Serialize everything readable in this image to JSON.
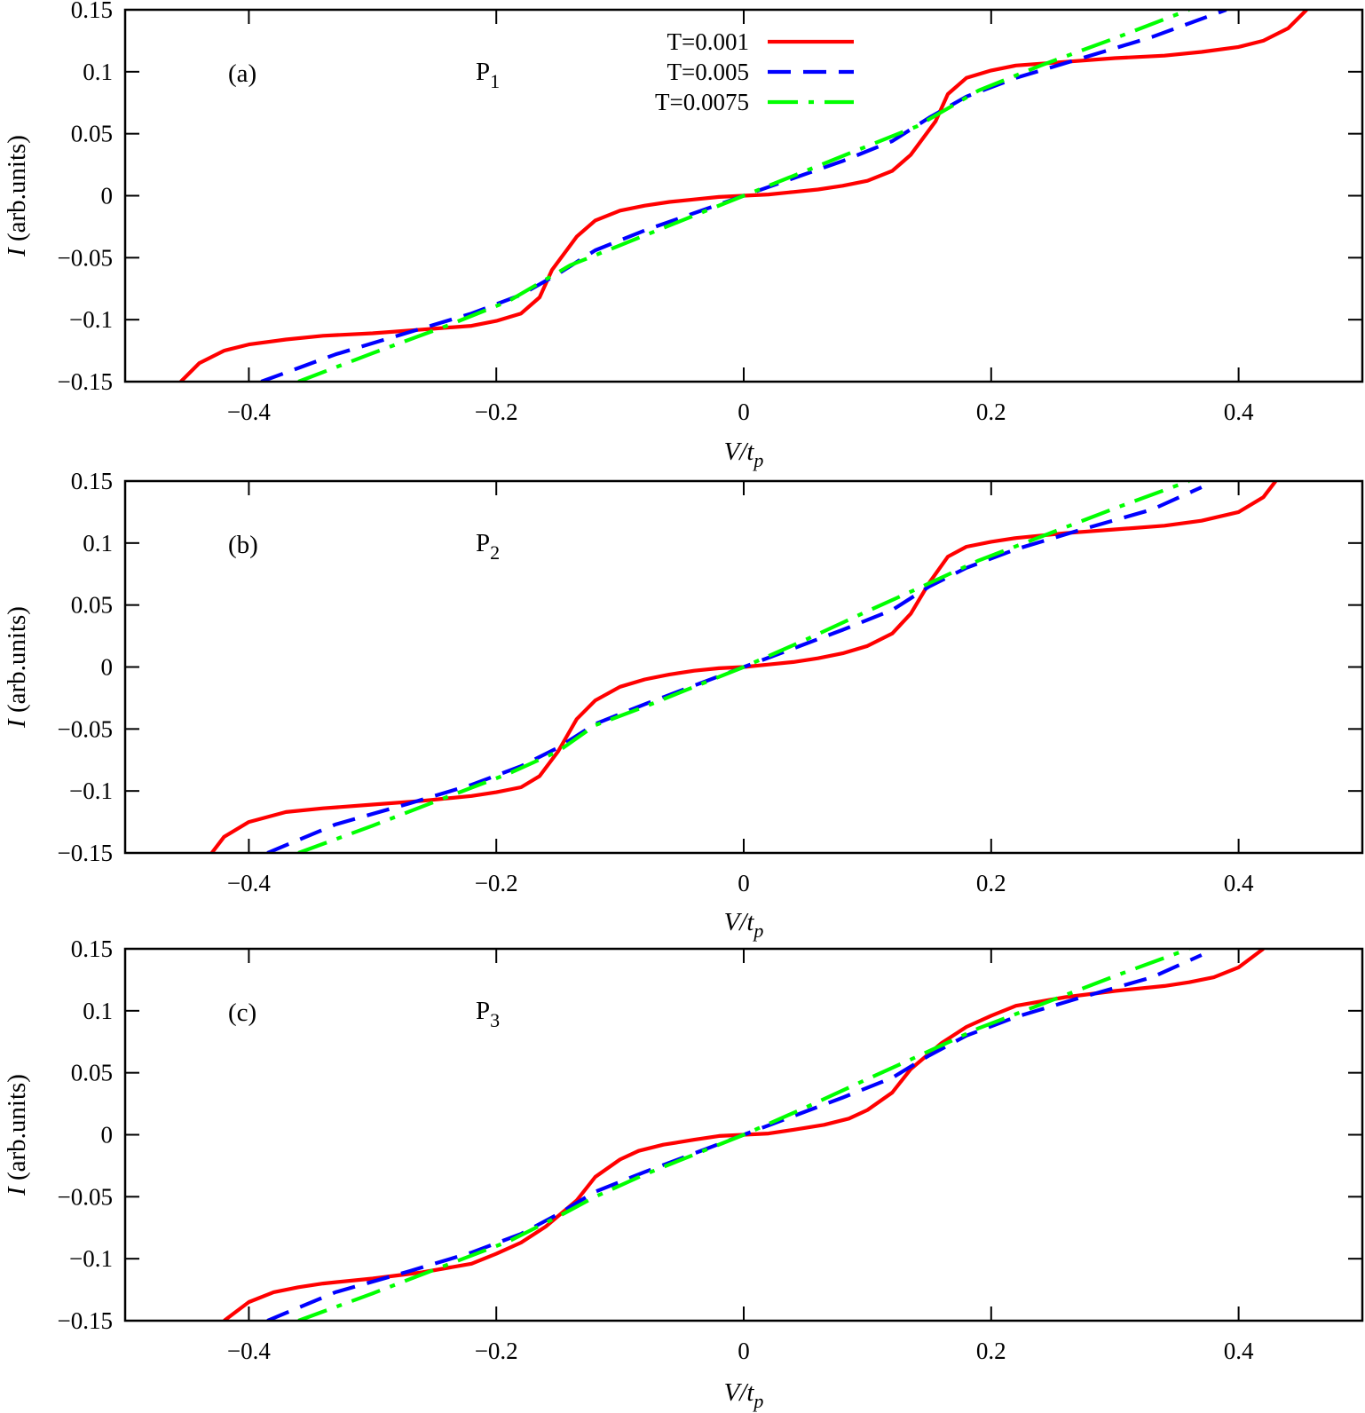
{
  "chart_data": [
    {
      "type": "line",
      "panel_label": "(a)",
      "annotation": {
        "text": "P",
        "subscript": "1"
      },
      "xlabel": {
        "italic": "V/t",
        "subscript": "p"
      },
      "ylabel": {
        "italic": "I",
        "rest": " (arb.units)"
      },
      "xlim": [
        -0.5,
        0.5
      ],
      "ylim": [
        -0.15,
        0.15
      ],
      "xticks": [
        -0.4,
        -0.2,
        0,
        0.2,
        0.4
      ],
      "xtick_labels": [
        "−0.4",
        "−0.2",
        "0",
        "0.2",
        "0.4"
      ],
      "yticks": [
        -0.15,
        -0.1,
        -0.05,
        0,
        0.05,
        0.1,
        0.15
      ],
      "ytick_labels": [
        "−0.15",
        "−0.1",
        "−0.05",
        "0",
        "0.05",
        "0.1",
        "0.15"
      ],
      "legend_position": "top-center",
      "series": [
        {
          "name": "T=0.001",
          "color": "#ff0000",
          "dash": "solid",
          "x": [
            -0.455,
            -0.44,
            -0.42,
            -0.4,
            -0.37,
            -0.34,
            -0.3,
            -0.26,
            -0.22,
            -0.2,
            -0.18,
            -0.165,
            -0.155,
            -0.135,
            -0.12,
            -0.1,
            -0.08,
            -0.06,
            -0.04,
            -0.02,
            0,
            0.02,
            0.04,
            0.06,
            0.08,
            0.1,
            0.12,
            0.135,
            0.155,
            0.165,
            0.18,
            0.2,
            0.22,
            0.26,
            0.3,
            0.34,
            0.37,
            0.4,
            0.42,
            0.44,
            0.455
          ],
          "y": [
            -0.15,
            -0.135,
            -0.125,
            -0.12,
            -0.116,
            -0.113,
            -0.111,
            -0.108,
            -0.105,
            -0.101,
            -0.095,
            -0.082,
            -0.06,
            -0.033,
            -0.02,
            -0.012,
            -0.008,
            -0.005,
            -0.003,
            -0.001,
            0,
            0.001,
            0.003,
            0.005,
            0.008,
            0.012,
            0.02,
            0.033,
            0.06,
            0.082,
            0.095,
            0.101,
            0.105,
            0.108,
            0.111,
            0.113,
            0.116,
            0.12,
            0.125,
            0.135,
            0.15
          ]
        },
        {
          "name": "T=0.005",
          "color": "#0000ff",
          "dash": "dashed",
          "x": [
            -0.39,
            -0.33,
            -0.27,
            -0.22,
            -0.18,
            -0.15,
            -0.12,
            -0.08,
            -0.04,
            0,
            0.04,
            0.08,
            0.12,
            0.15,
            0.18,
            0.22,
            0.27,
            0.33,
            0.39
          ],
          "y": [
            -0.15,
            -0.128,
            -0.11,
            -0.095,
            -0.08,
            -0.063,
            -0.044,
            -0.028,
            -0.014,
            0,
            0.014,
            0.028,
            0.044,
            0.063,
            0.08,
            0.095,
            0.11,
            0.128,
            0.15
          ]
        },
        {
          "name": "T=0.0075",
          "color": "#00ff00",
          "dash": "dash-dot",
          "x": [
            -0.36,
            -0.3,
            -0.24,
            -0.19,
            -0.14,
            -0.1,
            -0.05,
            0,
            0.05,
            0.1,
            0.14,
            0.19,
            0.24,
            0.3,
            0.36
          ],
          "y": [
            -0.15,
            -0.127,
            -0.105,
            -0.085,
            -0.056,
            -0.04,
            -0.02,
            0,
            0.02,
            0.04,
            0.056,
            0.085,
            0.105,
            0.127,
            0.15
          ]
        }
      ]
    },
    {
      "type": "line",
      "panel_label": "(b)",
      "annotation": {
        "text": "P",
        "subscript": "2"
      },
      "xlabel": {
        "italic": "V/t",
        "subscript": "p"
      },
      "ylabel": {
        "italic": "I",
        "rest": " (arb.units)"
      },
      "xlim": [
        -0.5,
        0.5
      ],
      "ylim": [
        -0.15,
        0.15
      ],
      "xticks": [
        -0.4,
        -0.2,
        0,
        0.2,
        0.4
      ],
      "xtick_labels": [
        "−0.4",
        "−0.2",
        "0",
        "0.2",
        "0.4"
      ],
      "yticks": [
        -0.15,
        -0.1,
        -0.05,
        0,
        0.05,
        0.1,
        0.15
      ],
      "ytick_labels": [
        "−0.15",
        "−0.1",
        "−0.05",
        "0",
        "0.05",
        "0.1",
        "0.15"
      ],
      "series": [
        {
          "name": "T=0.001",
          "color": "#ff0000",
          "dash": "solid",
          "x": [
            -0.43,
            -0.42,
            -0.4,
            -0.37,
            -0.34,
            -0.3,
            -0.26,
            -0.22,
            -0.2,
            -0.18,
            -0.165,
            -0.15,
            -0.135,
            -0.12,
            -0.1,
            -0.08,
            -0.06,
            -0.04,
            -0.02,
            0,
            0.02,
            0.04,
            0.06,
            0.08,
            0.1,
            0.12,
            0.135,
            0.15,
            0.165,
            0.18,
            0.2,
            0.22,
            0.26,
            0.3,
            0.34,
            0.37,
            0.4,
            0.42,
            0.43
          ],
          "y": [
            -0.15,
            -0.137,
            -0.125,
            -0.117,
            -0.114,
            -0.111,
            -0.108,
            -0.104,
            -0.101,
            -0.097,
            -0.088,
            -0.068,
            -0.042,
            -0.027,
            -0.016,
            -0.01,
            -0.006,
            -0.003,
            -0.001,
            0,
            0.002,
            0.004,
            0.007,
            0.011,
            0.017,
            0.027,
            0.043,
            0.068,
            0.089,
            0.097,
            0.101,
            0.104,
            0.108,
            0.111,
            0.114,
            0.118,
            0.125,
            0.137,
            0.15
          ]
        },
        {
          "name": "T=0.005",
          "color": "#0000ff",
          "dash": "dashed",
          "x": [
            -0.385,
            -0.33,
            -0.27,
            -0.22,
            -0.18,
            -0.15,
            -0.12,
            -0.08,
            -0.04,
            0,
            0.04,
            0.08,
            0.12,
            0.15,
            0.18,
            0.22,
            0.27,
            0.33,
            0.37
          ],
          "y": [
            -0.15,
            -0.127,
            -0.11,
            -0.095,
            -0.08,
            -0.065,
            -0.046,
            -0.03,
            -0.015,
            0,
            0.015,
            0.03,
            0.046,
            0.065,
            0.08,
            0.095,
            0.11,
            0.127,
            0.145
          ]
        },
        {
          "name": "T=0.0075",
          "color": "#00ff00",
          "dash": "dash-dot",
          "x": [
            -0.36,
            -0.3,
            -0.24,
            -0.19,
            -0.15,
            -0.12,
            -0.08,
            -0.04,
            0,
            0.05,
            0.1,
            0.14,
            0.19,
            0.24,
            0.3,
            0.36
          ],
          "y": [
            -0.15,
            -0.128,
            -0.105,
            -0.086,
            -0.068,
            -0.047,
            -0.032,
            -0.016,
            0,
            0.022,
            0.045,
            0.063,
            0.086,
            0.105,
            0.128,
            0.15
          ]
        }
      ]
    },
    {
      "type": "line",
      "panel_label": "(c)",
      "annotation": {
        "text": "P",
        "subscript": "3"
      },
      "xlabel": {
        "italic": "V/t",
        "subscript": "p"
      },
      "ylabel": {
        "italic": "I",
        "rest": " (arb.units)"
      },
      "xlim": [
        -0.5,
        0.5
      ],
      "ylim": [
        -0.15,
        0.15
      ],
      "xticks": [
        -0.4,
        -0.2,
        0,
        0.2,
        0.4
      ],
      "xtick_labels": [
        "−0.4",
        "−0.2",
        "0",
        "0.2",
        "0.4"
      ],
      "yticks": [
        -0.15,
        -0.1,
        -0.05,
        0,
        0.05,
        0.1,
        0.15
      ],
      "ytick_labels": [
        "−0.15",
        "−0.1",
        "−0.05",
        "0",
        "0.05",
        "0.1",
        "0.15"
      ],
      "series": [
        {
          "name": "T=0.001",
          "color": "#ff0000",
          "dash": "solid",
          "x": [
            -0.42,
            -0.4,
            -0.38,
            -0.36,
            -0.34,
            -0.3,
            -0.26,
            -0.22,
            -0.2,
            -0.18,
            -0.16,
            -0.135,
            -0.12,
            -0.1,
            -0.085,
            -0.065,
            -0.04,
            -0.02,
            0,
            0.02,
            0.04,
            0.065,
            0.085,
            0.1,
            0.12,
            0.135,
            0.16,
            0.18,
            0.2,
            0.22,
            0.26,
            0.3,
            0.34,
            0.36,
            0.38,
            0.4,
            0.42
          ],
          "y": [
            -0.15,
            -0.135,
            -0.127,
            -0.123,
            -0.12,
            -0.116,
            -0.111,
            -0.104,
            -0.096,
            -0.087,
            -0.074,
            -0.053,
            -0.034,
            -0.02,
            -0.013,
            -0.008,
            -0.004,
            -0.001,
            0,
            0.001,
            0.004,
            0.008,
            0.013,
            0.02,
            0.034,
            0.053,
            0.074,
            0.087,
            0.096,
            0.104,
            0.111,
            0.116,
            0.12,
            0.123,
            0.127,
            0.135,
            0.15
          ]
        },
        {
          "name": "T=0.005",
          "color": "#0000ff",
          "dash": "dashed",
          "x": [
            -0.385,
            -0.33,
            -0.27,
            -0.22,
            -0.18,
            -0.15,
            -0.12,
            -0.08,
            -0.04,
            0,
            0.04,
            0.08,
            0.12,
            0.15,
            0.18,
            0.22,
            0.27,
            0.33,
            0.37
          ],
          "y": [
            -0.15,
            -0.127,
            -0.11,
            -0.095,
            -0.08,
            -0.064,
            -0.046,
            -0.03,
            -0.015,
            0,
            0.015,
            0.03,
            0.046,
            0.064,
            0.08,
            0.095,
            0.11,
            0.127,
            0.145
          ]
        },
        {
          "name": "T=0.0075",
          "color": "#00ff00",
          "dash": "dash-dot",
          "x": [
            -0.36,
            -0.3,
            -0.24,
            -0.19,
            -0.15,
            -0.12,
            -0.08,
            -0.04,
            0,
            0.05,
            0.1,
            0.14,
            0.19,
            0.24,
            0.3,
            0.36
          ],
          "y": [
            -0.15,
            -0.128,
            -0.105,
            -0.086,
            -0.066,
            -0.05,
            -0.032,
            -0.016,
            0,
            0.022,
            0.045,
            0.063,
            0.086,
            0.105,
            0.128,
            0.15
          ]
        }
      ]
    }
  ]
}
